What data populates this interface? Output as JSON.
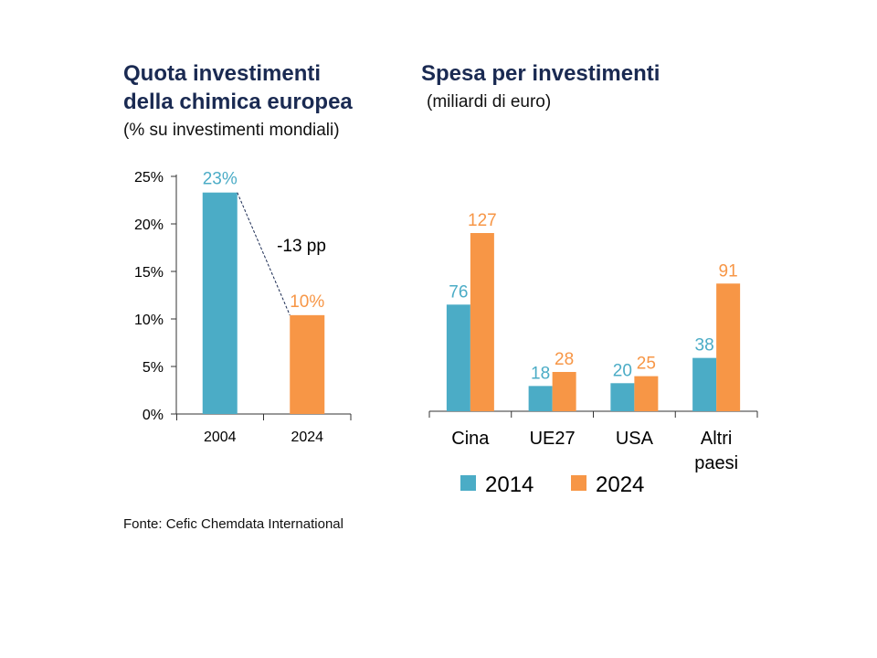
{
  "colors": {
    "s2014": "#4bacc6",
    "s2024": "#f79646",
    "axis": "#333333",
    "title": "#1a2a52"
  },
  "left": {
    "title_line1": "Quota investimenti",
    "title_line2": "della chimica europea",
    "subtitle": "(% su investimenti mondiali)",
    "annotation": "-13 pp"
  },
  "right": {
    "title": "Spesa per investimenti",
    "subtitle": "(miliardi di euro)"
  },
  "source": "Fonte: Cefic Chemdata International",
  "chart_data": [
    {
      "type": "bar",
      "title": "Quota investimenti della chimica europea",
      "subtitle": "(% su investimenti mondiali)",
      "categories": [
        "2004",
        "2024"
      ],
      "values": [
        23.3,
        10.4
      ],
      "value_labels": [
        "23%",
        "10%"
      ],
      "bar_colors": [
        "#4bacc6",
        "#f79646"
      ],
      "ylim": [
        0,
        25
      ],
      "yticks": [
        0,
        5,
        10,
        15,
        20,
        25
      ],
      "ytick_labels": [
        "0%",
        "5%",
        "10%",
        "15%",
        "20%",
        "25%"
      ],
      "annotation": {
        "text": "-13 pp",
        "from": "2004",
        "to": "2024"
      },
      "grid": false,
      "legend": "none"
    },
    {
      "type": "bar",
      "title": "Spesa per investimenti",
      "subtitle": "(miliardi di euro)",
      "categories": [
        "Cina",
        "UE27",
        "USA",
        "Altri paesi"
      ],
      "series": [
        {
          "name": "2014",
          "color": "#4bacc6",
          "values": [
            76,
            18,
            20,
            38
          ]
        },
        {
          "name": "2024",
          "color": "#f79646",
          "values": [
            127,
            28,
            25,
            91
          ]
        }
      ],
      "ylim": [
        0,
        127
      ],
      "grid": false,
      "legend": "bottom"
    }
  ]
}
